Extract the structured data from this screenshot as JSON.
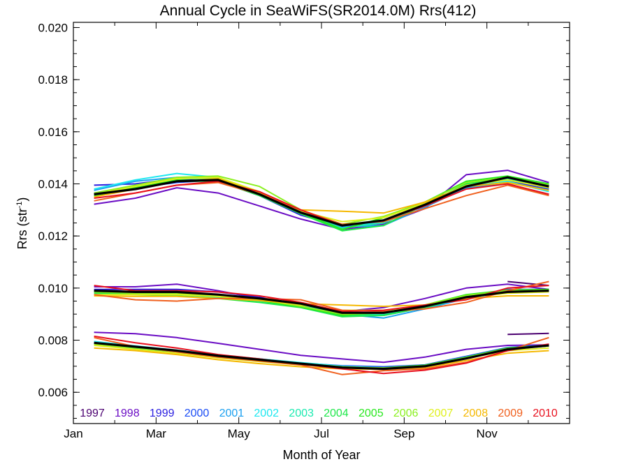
{
  "chart_data": {
    "type": "line",
    "title": "Annual Cycle in SeaWiFS(SR2014.0M) Rrs(412)",
    "xlabel": "Month of Year",
    "ylabel_main": "Rrs (str",
    "ylabel_sup": "-1",
    "ylabel_close": ")",
    "xlim": [
      1,
      13
    ],
    "ylim": [
      0.0048,
      0.0202
    ],
    "xticks": [
      {
        "value": 1,
        "label": "Jan"
      },
      {
        "value": 3,
        "label": "Mar"
      },
      {
        "value": 5,
        "label": "May"
      },
      {
        "value": 7,
        "label": "Jul"
      },
      {
        "value": 9,
        "label": "Sep"
      },
      {
        "value": 11,
        "label": "Nov"
      }
    ],
    "yticks": [
      {
        "value": 0.006,
        "label": "0.006"
      },
      {
        "value": 0.008,
        "label": "0.008"
      },
      {
        "value": 0.01,
        "label": "0.010"
      },
      {
        "value": 0.012,
        "label": "0.012"
      },
      {
        "value": 0.014,
        "label": "0.014"
      },
      {
        "value": 0.016,
        "label": "0.016"
      },
      {
        "value": 0.018,
        "label": "0.018"
      },
      {
        "value": 0.02,
        "label": "0.020"
      }
    ],
    "x": [
      1.5,
      2.5,
      3.5,
      4.5,
      5.5,
      6.5,
      7.5,
      8.5,
      9.5,
      10.5,
      11.5,
      12.5
    ],
    "legend_position": "bottom",
    "climatology": {
      "color": "#000000",
      "high": [
        0.0136,
        0.0138,
        0.0141,
        0.01415,
        0.0136,
        0.0129,
        0.0124,
        0.0126,
        0.0132,
        0.0139,
        0.01425,
        0.0139
      ],
      "mid": [
        0.0099,
        0.00985,
        0.00985,
        0.00975,
        0.0096,
        0.0094,
        0.00905,
        0.00905,
        0.0093,
        0.00965,
        0.00985,
        0.0099
      ],
      "low": [
        0.0079,
        0.00775,
        0.0076,
        0.0074,
        0.00725,
        0.0071,
        0.00695,
        0.0069,
        0.007,
        0.0073,
        0.00765,
        0.0078
      ]
    },
    "series": [
      {
        "name": "1997",
        "color": "#4b0070",
        "high": [
          null,
          null,
          null,
          null,
          null,
          null,
          null,
          null,
          null,
          null,
          null,
          null
        ],
        "mid": [
          null,
          null,
          null,
          null,
          null,
          null,
          null,
          null,
          null,
          null,
          0.01025,
          0.0101
        ],
        "low": [
          null,
          null,
          null,
          null,
          null,
          null,
          null,
          null,
          null,
          null,
          0.00822,
          0.00826
        ]
      },
      {
        "name": "1998",
        "color": "#6a0cc4",
        "high": [
          0.01322,
          0.01345,
          0.01385,
          0.01365,
          0.01315,
          0.01265,
          0.01225,
          0.01245,
          0.01305,
          0.01435,
          0.01452,
          0.01405
        ],
        "mid": [
          0.01005,
          0.01005,
          0.01015,
          0.0099,
          0.0096,
          0.0093,
          0.0091,
          0.00925,
          0.0096,
          0.01,
          0.01015,
          0.00995
        ],
        "low": [
          0.0083,
          0.00825,
          0.0081,
          0.00788,
          0.00765,
          0.00742,
          0.00728,
          0.00715,
          0.00735,
          0.00765,
          0.0078,
          0.00782
        ]
      },
      {
        "name": "1999",
        "color": "#2a1ee0",
        "high": [
          0.01395,
          0.014,
          0.0142,
          0.0141,
          0.01355,
          0.0128,
          0.01235,
          0.01255,
          0.01315,
          0.01395,
          0.0141,
          0.01385
        ],
        "mid": [
          0.00995,
          0.00995,
          0.00995,
          0.00985,
          0.00965,
          0.0093,
          0.009,
          0.00905,
          0.0093,
          0.0097,
          0.0099,
          0.0099
        ],
        "low": [
          0.00785,
          0.0077,
          0.00755,
          0.00738,
          0.00725,
          0.00712,
          0.007,
          0.00695,
          0.00705,
          0.00738,
          0.0077,
          0.0078
        ]
      },
      {
        "name": "2000",
        "color": "#1a4cf5",
        "high": [
          0.01365,
          0.01385,
          0.01405,
          0.01415,
          0.01365,
          0.01295,
          0.0124,
          0.01255,
          0.01325,
          0.01395,
          0.01405,
          0.0138
        ],
        "mid": [
          0.0099,
          0.00985,
          0.00985,
          0.0097,
          0.00955,
          0.00935,
          0.00905,
          0.00895,
          0.00925,
          0.00965,
          0.00995,
          0.00995
        ],
        "low": [
          0.0079,
          0.00775,
          0.0076,
          0.0074,
          0.00728,
          0.00712,
          0.00702,
          0.00698,
          0.00705,
          0.00738,
          0.00772,
          0.00782
        ]
      },
      {
        "name": "2001",
        "color": "#1aa0f0",
        "high": [
          0.01375,
          0.0141,
          0.01425,
          0.0142,
          0.0136,
          0.01285,
          0.01235,
          0.0124,
          0.0131,
          0.01385,
          0.014,
          0.0136
        ],
        "mid": [
          0.00985,
          0.0098,
          0.0098,
          0.0097,
          0.00955,
          0.00935,
          0.009,
          0.00885,
          0.0092,
          0.0096,
          0.00985,
          0.0099
        ],
        "low": [
          0.00785,
          0.00772,
          0.00758,
          0.0074,
          0.00725,
          0.0071,
          0.00698,
          0.00692,
          0.007,
          0.00732,
          0.00765,
          0.00778
        ]
      },
      {
        "name": "2002",
        "color": "#1ee8f0",
        "high": [
          0.0138,
          0.01415,
          0.0144,
          0.01425,
          0.01365,
          0.01295,
          0.0124,
          0.0125,
          0.0132,
          0.01395,
          0.0141,
          0.0137
        ],
        "mid": [
          0.0099,
          0.00985,
          0.00985,
          0.00975,
          0.0096,
          0.00935,
          0.00905,
          0.009,
          0.00925,
          0.00962,
          0.00988,
          0.00992
        ],
        "low": [
          0.00795,
          0.00778,
          0.00762,
          0.00744,
          0.00728,
          0.00714,
          0.007,
          0.00694,
          0.00702,
          0.00735,
          0.00768,
          0.0078
        ]
      },
      {
        "name": "2003",
        "color": "#1aeab0",
        "high": [
          0.0136,
          0.0139,
          0.0142,
          0.0142,
          0.0136,
          0.0129,
          0.0123,
          0.0125,
          0.0132,
          0.014,
          0.0142,
          0.01385
        ],
        "mid": [
          0.00985,
          0.0098,
          0.00975,
          0.00965,
          0.0095,
          0.0093,
          0.00895,
          0.009,
          0.00925,
          0.00965,
          0.00985,
          0.0099
        ],
        "low": [
          0.00788,
          0.00774,
          0.00758,
          0.0074,
          0.00726,
          0.00712,
          0.00698,
          0.00692,
          0.007,
          0.00732,
          0.00768,
          0.00778
        ]
      },
      {
        "name": "2004",
        "color": "#1ee84a",
        "high": [
          0.01355,
          0.01385,
          0.0141,
          0.0141,
          0.01355,
          0.01285,
          0.0122,
          0.0124,
          0.0132,
          0.014,
          0.01425,
          0.01395
        ],
        "mid": [
          0.0098,
          0.00975,
          0.0097,
          0.0096,
          0.00945,
          0.00925,
          0.0089,
          0.00895,
          0.00925,
          0.00965,
          0.00985,
          0.00995
        ],
        "low": [
          0.00785,
          0.0077,
          0.00755,
          0.00738,
          0.00722,
          0.00708,
          0.00695,
          0.0069,
          0.007,
          0.0073,
          0.00765,
          0.00778
        ]
      },
      {
        "name": "2005",
        "color": "#28e81e",
        "high": [
          0.01355,
          0.01385,
          0.01415,
          0.0141,
          0.0136,
          0.0129,
          0.01225,
          0.0127,
          0.0133,
          0.0141,
          0.0143,
          0.014
        ],
        "mid": [
          0.00985,
          0.0098,
          0.0098,
          0.00968,
          0.00952,
          0.00928,
          0.00895,
          0.00905,
          0.00935,
          0.00975,
          0.00992,
          0.00995
        ],
        "low": [
          0.00788,
          0.00772,
          0.00758,
          0.0074,
          0.00725,
          0.0071,
          0.00696,
          0.00694,
          0.00704,
          0.00735,
          0.0077,
          0.0078
        ]
      },
      {
        "name": "2006",
        "color": "#8af01e",
        "high": [
          0.01365,
          0.01395,
          0.01425,
          0.0143,
          0.0139,
          0.013,
          0.01245,
          0.01275,
          0.0133,
          0.01405,
          0.01425,
          0.01395
        ],
        "mid": [
          0.00985,
          0.0098,
          0.0098,
          0.0097,
          0.00955,
          0.0093,
          0.009,
          0.00905,
          0.00935,
          0.00972,
          0.0099,
          0.00992
        ],
        "low": [
          0.00785,
          0.00772,
          0.00756,
          0.00738,
          0.00723,
          0.0071,
          0.00698,
          0.00693,
          0.00702,
          0.00733,
          0.00768,
          0.00778
        ]
      },
      {
        "name": "2007",
        "color": "#e0f01e",
        "high": [
          0.0136,
          0.0139,
          0.0142,
          0.01425,
          0.0137,
          0.01295,
          0.01255,
          0.0127,
          0.01325,
          0.01395,
          0.01415,
          0.01385
        ],
        "mid": [
          0.00975,
          0.00975,
          0.00975,
          0.00968,
          0.00955,
          0.00935,
          0.00915,
          0.00915,
          0.0093,
          0.00965,
          0.0098,
          0.00985
        ],
        "low": [
          0.0078,
          0.00765,
          0.0075,
          0.00732,
          0.00718,
          0.00705,
          0.00695,
          0.00692,
          0.007,
          0.0073,
          0.0076,
          0.0077
        ]
      },
      {
        "name": "2008",
        "color": "#f5b800",
        "high": [
          0.0135,
          0.0138,
          0.0141,
          0.0142,
          0.01365,
          0.013,
          0.01295,
          0.01288,
          0.0133,
          0.0139,
          0.01405,
          0.01375
        ],
        "mid": [
          0.0097,
          0.00968,
          0.00968,
          0.0096,
          0.00952,
          0.0094,
          0.00935,
          0.0093,
          0.00935,
          0.0096,
          0.0097,
          0.0097
        ],
        "low": [
          0.0077,
          0.0076,
          0.00745,
          0.00725,
          0.0071,
          0.00698,
          0.0069,
          0.00688,
          0.00695,
          0.00722,
          0.0075,
          0.0076
        ]
      },
      {
        "name": "2009",
        "color": "#f0601e",
        "high": [
          0.01335,
          0.01365,
          0.01395,
          0.01405,
          0.0136,
          0.013,
          0.01245,
          0.01255,
          0.01305,
          0.01355,
          0.01395,
          0.01355
        ],
        "mid": [
          0.00975,
          0.00955,
          0.0095,
          0.0096,
          0.0096,
          0.00955,
          0.00915,
          0.0091,
          0.0092,
          0.00945,
          0.0099,
          0.01025
        ],
        "low": [
          0.0081,
          0.00775,
          0.00755,
          0.00735,
          0.0072,
          0.00705,
          0.00668,
          0.00683,
          0.0069,
          0.00715,
          0.0076,
          0.0081
        ]
      },
      {
        "name": "2010",
        "color": "#e8101e",
        "high": [
          0.01345,
          0.01365,
          0.01395,
          0.0141,
          0.0137,
          0.013,
          0.0124,
          0.0126,
          0.01315,
          0.0138,
          0.014,
          0.0136
        ],
        "mid": [
          0.0101,
          0.0099,
          0.0099,
          0.00985,
          0.0097,
          0.00945,
          0.0091,
          0.00915,
          0.00935,
          0.00955,
          0.01,
          0.0101
        ],
        "low": [
          0.00815,
          0.0079,
          0.0077,
          0.00745,
          0.00728,
          0.00708,
          0.0069,
          0.00672,
          0.00685,
          0.00712,
          0.0076,
          0.00785
        ]
      }
    ]
  }
}
